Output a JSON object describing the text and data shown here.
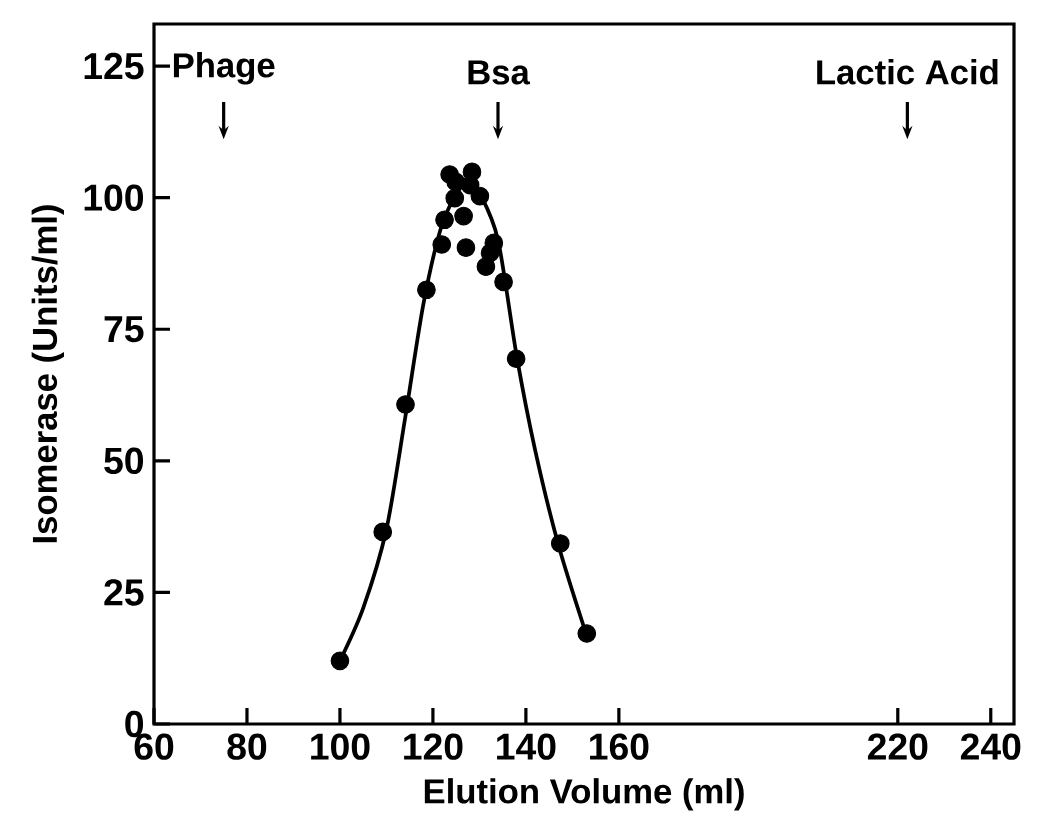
{
  "chart_data": {
    "type": "scatter",
    "xlabel": "Elution Volume (ml)",
    "ylabel": "Isomerase (Units/ml)",
    "xlim": [
      60,
      245
    ],
    "xticks": [
      60,
      80,
      100,
      120,
      140,
      160,
      220,
      240
    ],
    "ylim": [
      0,
      133
    ],
    "yticks": [
      0,
      25,
      50,
      75,
      100,
      125
    ],
    "marker": "circle",
    "series": [
      {
        "color": "#000000",
        "x": [
          100,
          109.2,
          114.1,
          118.6,
          121.9,
          122.5,
          123.6,
          124.9,
          124.7,
          126.6,
          127.1,
          128.4,
          128,
          130.1,
          133.1,
          132.3,
          131.4,
          135.2,
          137.9,
          147.4,
          153.1
        ],
        "values": [
          12,
          36.5,
          60.7,
          82.5,
          91.1,
          95.8,
          104.4,
          103,
          99.9,
          96.5,
          90.5,
          104.9,
          102.4,
          100.3,
          91.4,
          89.5,
          86.9,
          84,
          69.4,
          34.3,
          17.2
        ]
      },
      {
        "type": "line",
        "color": "#000000",
        "marker": "none",
        "x": [
          100,
          105,
          110,
          114,
          118,
          122,
          126,
          128,
          130,
          134,
          138,
          142,
          147,
          153
        ],
        "values": [
          12,
          22,
          37,
          58,
          80,
          95,
          102,
          103,
          101,
          92,
          70,
          52,
          34,
          17
        ]
      }
    ],
    "annotations": [
      "Phage",
      "Bsa",
      "Lactic Acid"
    ]
  }
}
